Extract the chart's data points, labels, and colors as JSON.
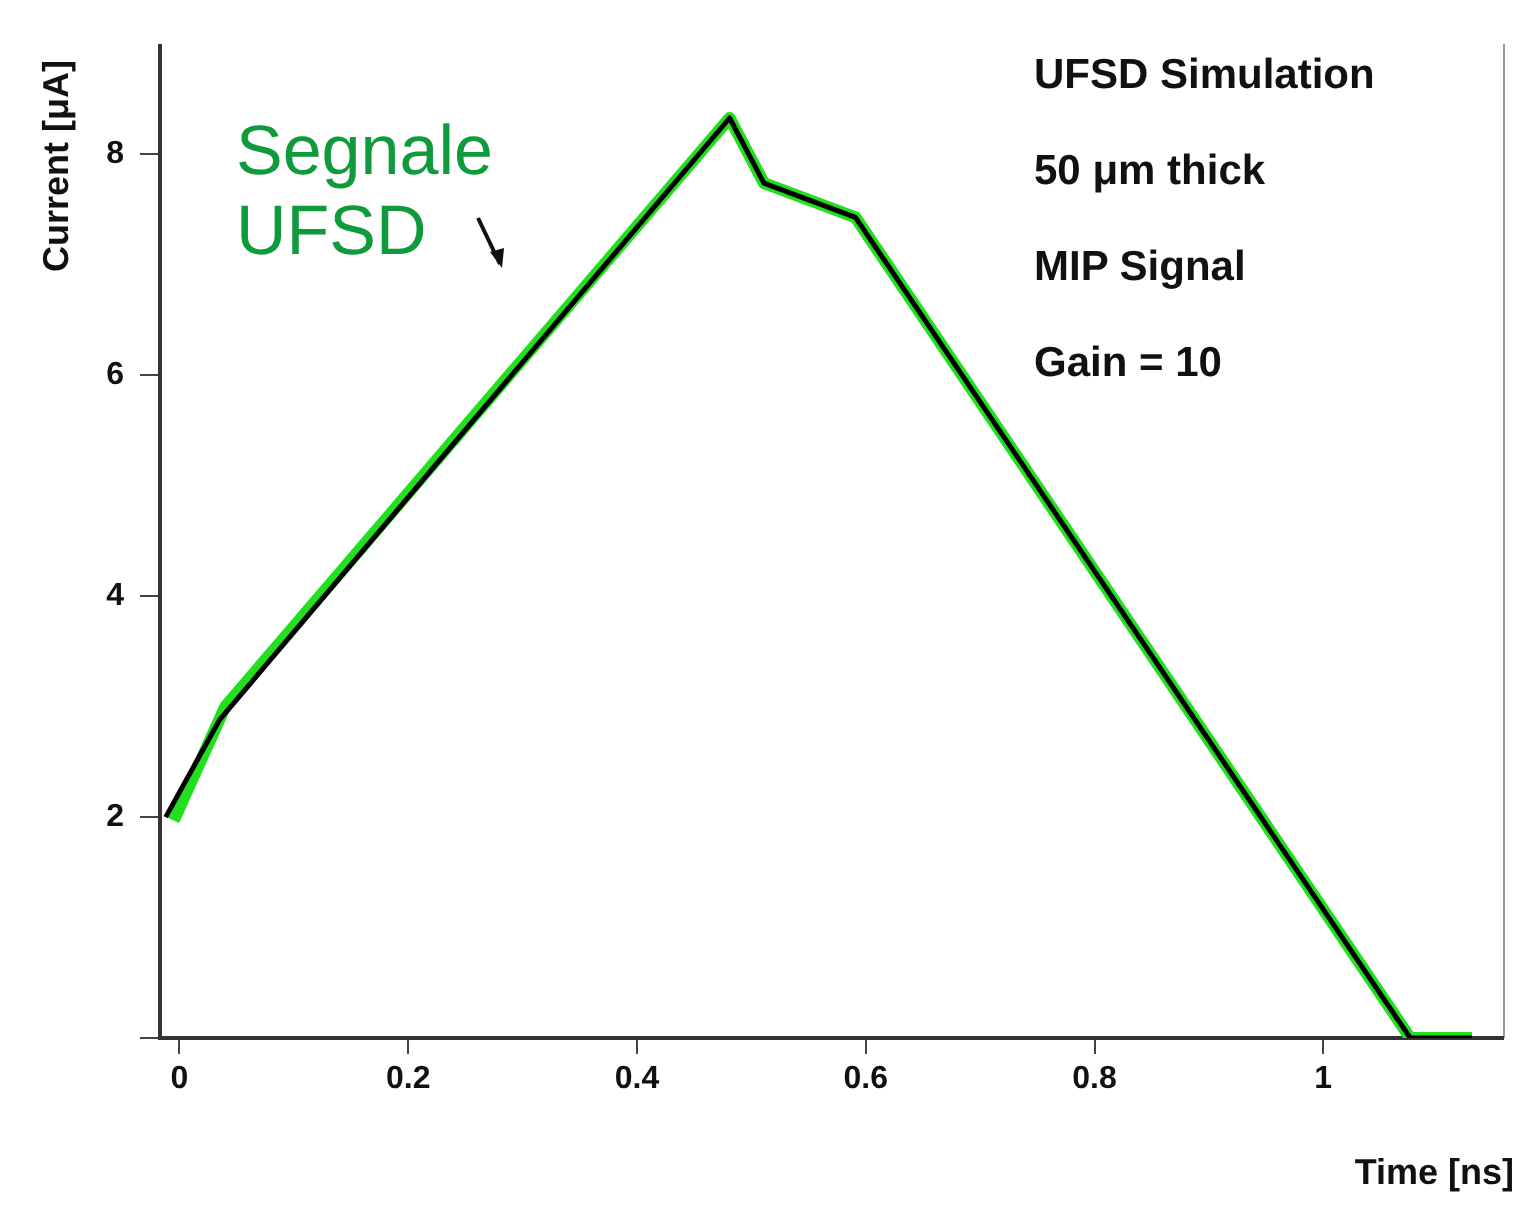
{
  "chart_data": {
    "type": "line",
    "xlabel": "Time [ns]",
    "ylabel": "Current [μA]",
    "annotations": [
      "UFSD Simulation",
      "50 μm thick",
      "MIP Signal",
      "Gain = 10"
    ],
    "series": [
      {
        "name": "Segnale UFSD",
        "color": "#22e01e",
        "x": [
          -0.005,
          0.04,
          0.481,
          0.511,
          0.591,
          1.076,
          1.13
        ],
        "values": [
          1.97,
          3.0,
          8.33,
          7.74,
          7.43,
          0,
          0
        ]
      },
      {
        "color": "#000000",
        "x": [
          -0.012,
          0.035,
          0.481,
          0.511,
          0.591,
          1.076,
          1.13
        ],
        "values": [
          2.0,
          2.88,
          8.33,
          7.74,
          7.43,
          0,
          0
        ]
      }
    ],
    "xlim": [
      -0.017,
      1.158
    ],
    "xticks": [
      0,
      0.2,
      0.4,
      0.6,
      0.8,
      1
    ],
    "ylim": [
      0,
      9
    ],
    "yticks": [
      {
        "value": 0,
        "label": null
      },
      2,
      4,
      6,
      8
    ],
    "grid": false,
    "legend": false,
    "marker": "none",
    "line_style": "solid"
  }
}
